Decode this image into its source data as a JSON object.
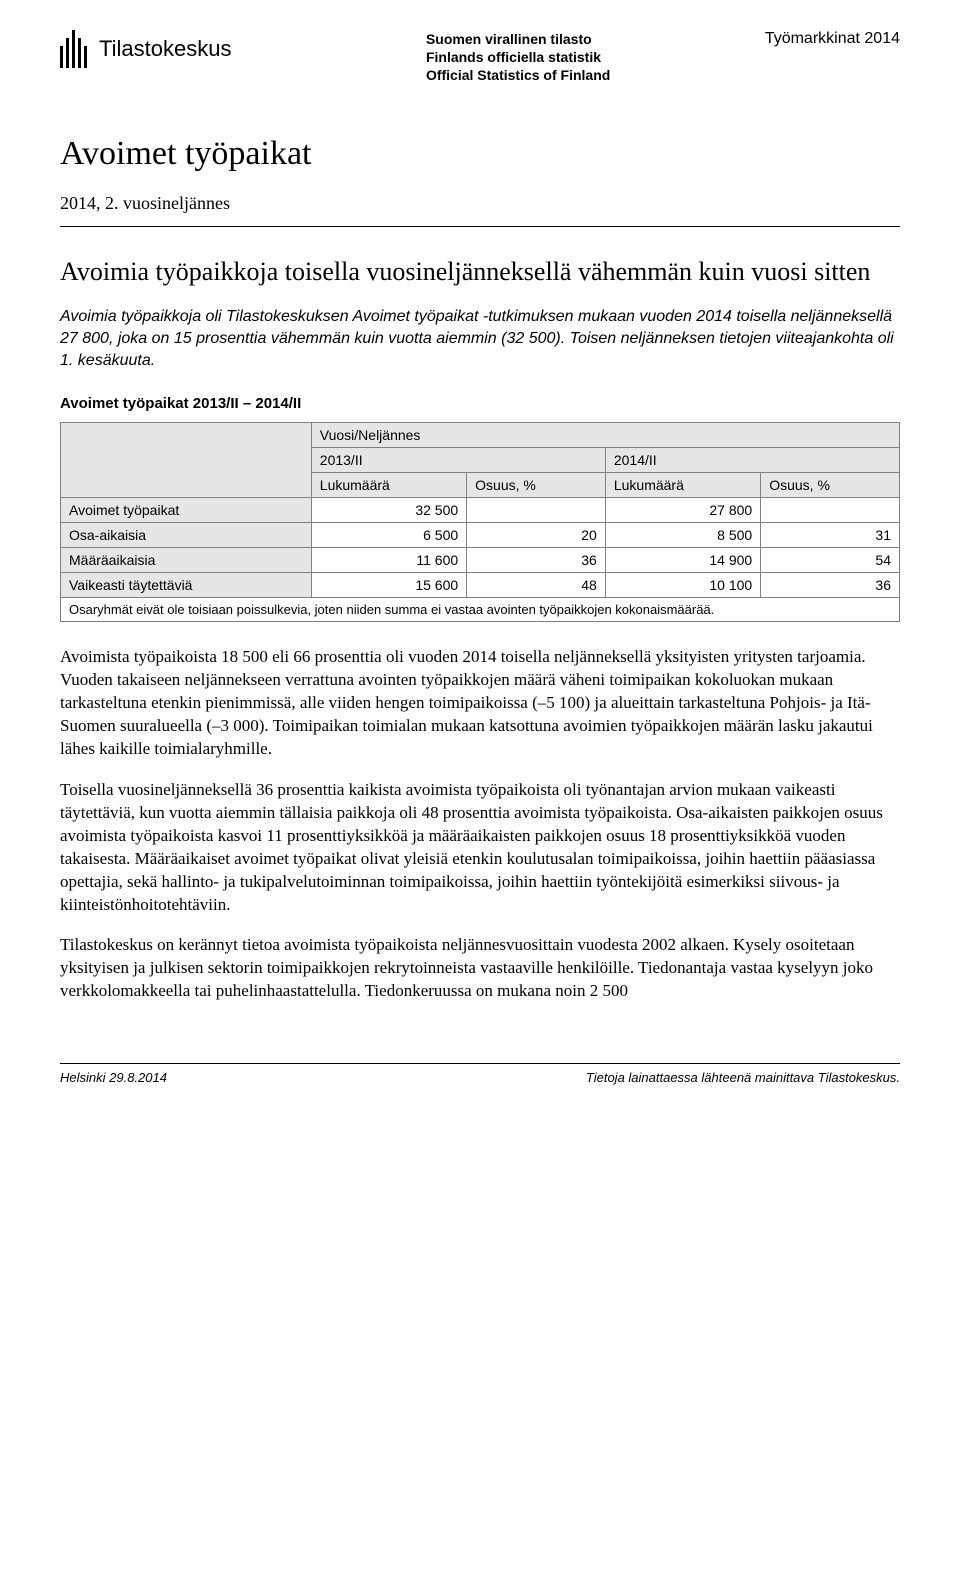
{
  "header": {
    "logo_text": "Tilastokeskus",
    "official_lines": [
      "Suomen virallinen tilasto",
      "Finlands officiella statistik",
      "Official Statistics of Finland"
    ],
    "category": "Työmarkkinat 2014"
  },
  "title": "Avoimet työpaikat",
  "subtitle": "2014, 2. vuosineljännes",
  "headline": "Avoimia työpaikkoja toisella vuosineljänneksellä vähemmän kuin vuosi sitten",
  "intro": "Avoimia työpaikkoja oli Tilastokeskuksen Avoimet työpaikat -tutkimuksen mukaan vuoden 2014 toisella neljänneksellä 27 800, joka on 15 prosenttia vähemmän kuin vuotta aiemmin (32 500). Toisen neljänneksen tietojen viiteajankohta oli 1. kesäkuuta.",
  "table": {
    "title": "Avoimet työpaikat 2013/II – 2014/II",
    "super_header": "Vuosi/Neljännes",
    "periods": [
      "2013/II",
      "2014/II"
    ],
    "sub_headers": [
      "Lukumäärä",
      "Osuus, %",
      "Lukumäärä",
      "Osuus, %"
    ],
    "rows": [
      {
        "label": "Avoimet työpaikat",
        "cells": [
          "32 500",
          "",
          "27 800",
          ""
        ]
      },
      {
        "label": "Osa-aikaisia",
        "cells": [
          "6 500",
          "20",
          "8 500",
          "31"
        ]
      },
      {
        "label": "Määräaikaisia",
        "cells": [
          "11 600",
          "36",
          "14 900",
          "54"
        ]
      },
      {
        "label": "Vaikeasti täytettäviä",
        "cells": [
          "15 600",
          "48",
          "10 100",
          "36"
        ]
      }
    ],
    "footnote": "Osaryhmät eivät ole toisiaan poissulkevia, joten niiden summa ei vastaa avointen työpaikkojen kokonaismäärää."
  },
  "paragraphs": [
    "Avoimista työpaikoista 18 500 eli 66 prosenttia oli vuoden 2014 toisella neljänneksellä yksityisten yritysten tarjoamia. Vuoden takaiseen neljännekseen verrattuna avointen työpaikkojen määrä väheni toimipaikan kokoluokan mukaan tarkasteltuna etenkin pienimmissä, alle viiden hengen toimipaikoissa (–5 100) ja alueittain tarkasteltuna Pohjois- ja Itä-Suomen suuralueella (–3 000). Toimipaikan toimialan mukaan katsottuna avoimien työpaikkojen määrän lasku jakautui lähes kaikille toimialaryhmille.",
    "Toisella vuosineljänneksellä 36 prosenttia kaikista avoimista työpaikoista oli työnantajan arvion mukaan vaikeasti täytettäviä, kun vuotta aiemmin tällaisia paikkoja oli 48 prosenttia avoimista työpaikoista. Osa-aikaisten paikkojen osuus avoimista työpaikoista kasvoi 11 prosenttiyksikköä ja määräaikaisten paikkojen osuus 18 prosenttiyksikköä vuoden takaisesta. Määräaikaiset avoimet työpaikat olivat yleisiä etenkin koulutusalan toimipaikoissa, joihin haettiin pääasiassa opettajia, sekä hallinto- ja tukipalvelutoiminnan toimipaikoissa, joihin haettiin työntekijöitä esimerkiksi siivous- ja kiinteistönhoitotehtäviin.",
    "Tilastokeskus on kerännyt tietoa avoimista työpaikoista neljännesvuosittain vuodesta 2002 alkaen. Kysely osoitetaan yksityisen ja julkisen sektorin toimipaikkojen rekrytoinneista vastaaville henkilöille. Tiedonantaja vastaa kyselyyn joko verkkolomakkeella tai puhelinhaastattelulla. Tiedonkeruussa on mukana noin 2 500"
  ],
  "footer": {
    "left": "Helsinki 29.8.2014",
    "right": "Tietoja lainattaessa lähteenä mainittava Tilastokeskus."
  },
  "colors": {
    "background": "#ffffff",
    "text": "#000000",
    "table_header_bg": "#e6e6e6",
    "table_border": "#808080"
  },
  "typography": {
    "body_font": "Georgia, Times New Roman, serif",
    "ui_font": "Arial, Helvetica, sans-serif",
    "h1_size_pt": 26,
    "h2_size_pt": 20,
    "body_size_pt": 13,
    "table_size_pt": 11
  }
}
